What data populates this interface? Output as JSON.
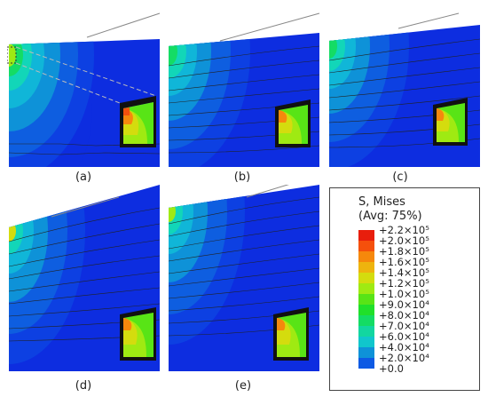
{
  "panels": [
    {
      "id": "a",
      "caption": "(a)",
      "inset": true
    },
    {
      "id": "b",
      "caption": "(b)",
      "inset": true
    },
    {
      "id": "c",
      "caption": "(c)",
      "inset": true
    },
    {
      "id": "d",
      "caption": "(d)",
      "inset": true
    },
    {
      "id": "e",
      "caption": "(e)",
      "inset": true
    }
  ],
  "legend": {
    "title_line1": "S, Mises",
    "title_line2": "(Avg: 75%)",
    "entries": [
      {
        "label": "+2.2×10⁵",
        "color": "#e81e0c"
      },
      {
        "label": "+2.0×10⁵",
        "color": "#f5500c"
      },
      {
        "label": "+1.8×10⁵",
        "color": "#f6880c"
      },
      {
        "label": "+1.6×10⁵",
        "color": "#eeb40e"
      },
      {
        "label": "+1.4×10⁵",
        "color": "#d4dc0e"
      },
      {
        "label": "+1.2×10⁵",
        "color": "#9fea12"
      },
      {
        "label": "+1.0×10⁵",
        "color": "#58e416"
      },
      {
        "label": "+9.0×10⁴",
        "color": "#20e02a"
      },
      {
        "label": "+8.0×10⁴",
        "color": "#14dc64"
      },
      {
        "label": "+7.0×10⁴",
        "color": "#12d6a0"
      },
      {
        "label": "+6.0×10⁴",
        "color": "#10c6cc"
      },
      {
        "label": "+4.0×10⁴",
        "color": "#0e92d8"
      },
      {
        "label": "+2.0×10⁴",
        "color": "#0d5ae4"
      },
      {
        "label": "+0.0",
        "color": "#0d2de0"
      }
    ]
  }
}
